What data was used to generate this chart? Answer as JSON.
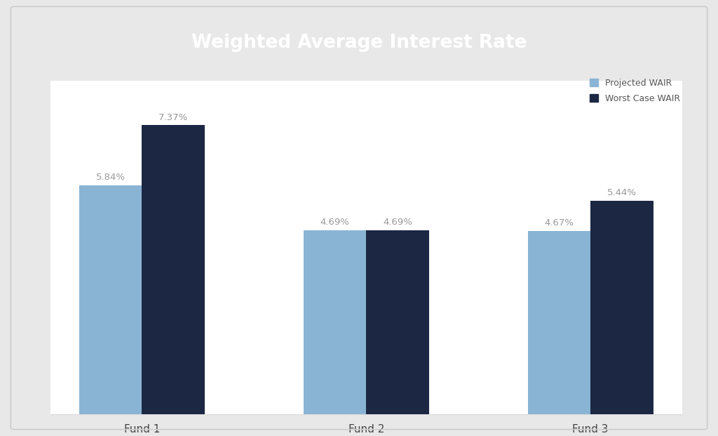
{
  "title": "Weighted Average Interest Rate",
  "title_bg_color": "#1b2743",
  "title_font_color": "#ffffff",
  "outer_bg_color": "#e8e8e8",
  "card_bg_color": "#ffffff",
  "plot_bg_color": "#ffffff",
  "categories": [
    "Fund 1",
    "Fund 2",
    "Fund 3"
  ],
  "projected_values": [
    5.84,
    4.69,
    4.67
  ],
  "worst_case_values": [
    7.37,
    4.69,
    5.44
  ],
  "projected_color": "#8ab4d4",
  "worst_case_color": "#1b2743",
  "bar_width": 0.28,
  "label_fontsize": 9.5,
  "category_fontsize": 11,
  "title_fontsize": 19,
  "legend_labels": [
    "Projected WAIR",
    "Worst Case WAIR"
  ],
  "legend_fontsize": 9,
  "ylim": [
    0,
    8.5
  ],
  "label_color": "#999999"
}
